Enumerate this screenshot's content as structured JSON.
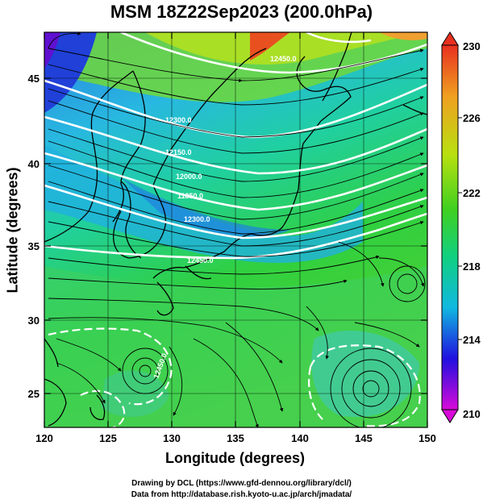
{
  "title": "MSM 18Z22Sep2023 (200.0hPa)",
  "xlabel": "Longitude (degrees)",
  "ylabel": "Latitude  (degrees)",
  "footer": {
    "line1": "Drawing by DCL (https://www.gfd-dennou.org/library/dcl/)",
    "line2": "Data from http://database.rish.kyoto-u.ac.jp/arch/jmadata/"
  },
  "x_ticks": [
    "120",
    "125",
    "130",
    "135",
    "140",
    "145",
    "150"
  ],
  "y_ticks": [
    "25",
    "30",
    "35",
    "40",
    "45"
  ],
  "colorbar": {
    "ticks": [
      "230",
      "226",
      "222",
      "218",
      "214",
      "210"
    ],
    "colors": [
      "#d80ad8",
      "#2010e0",
      "#10b8e0",
      "#10d080",
      "#40d020",
      "#b8e010",
      "#f0a020",
      "#e83020"
    ]
  },
  "contour_labels": [
    "12450.0",
    "12300.0",
    "12150.0",
    "12000.0",
    "11850.0",
    "12300.0",
    "12450.0",
    "12450.0"
  ],
  "chart_data": {
    "type": "heatmap",
    "title": "MSM 18Z22Sep2023 (200.0hPa)",
    "xlabel": "Longitude (degrees)",
    "ylabel": "Latitude  (degrees)",
    "xlim": [
      120,
      150
    ],
    "ylim": [
      22.4,
      47.6
    ],
    "colorbar_range": [
      210,
      230
    ],
    "colorbar_ticks": [
      210,
      214,
      218,
      222,
      226,
      230
    ],
    "contour_levels": [
      11850,
      12000,
      12150,
      12300,
      12450
    ]
  }
}
